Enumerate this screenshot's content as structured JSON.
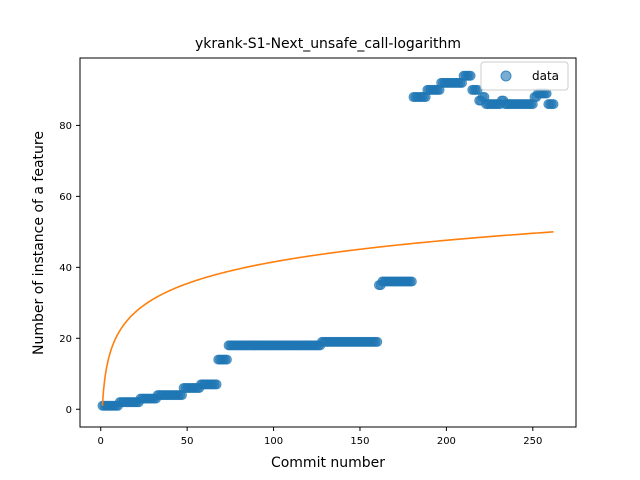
{
  "chart_data": {
    "type": "scatter",
    "title": "ykrank-S1-Next_unsafe_call-logarithm",
    "xlabel": "Commit number",
    "ylabel": "Number of instance of a feature",
    "xlim": [
      -12,
      275
    ],
    "ylim": [
      -5,
      99
    ],
    "xticks": [
      0,
      50,
      100,
      150,
      200,
      250
    ],
    "yticks": [
      0,
      20,
      40,
      60,
      80
    ],
    "grid": false,
    "legend": {
      "position": "top-right",
      "entries": [
        "data"
      ]
    },
    "colors": {
      "data": "#1f77b4",
      "fit": "#ff7f0e"
    },
    "series": [
      {
        "name": "data",
        "kind": "scatter",
        "segments": [
          {
            "x_start": 1,
            "x_end": 10,
            "y": 1
          },
          {
            "x_start": 11,
            "x_end": 22,
            "y": 2
          },
          {
            "x_start": 23,
            "x_end": 32,
            "y": 3
          },
          {
            "x_start": 33,
            "x_end": 47,
            "y": 4
          },
          {
            "x_start": 48,
            "x_end": 57,
            "y": 6
          },
          {
            "x_start": 58,
            "x_end": 67,
            "y": 7
          },
          {
            "x_start": 68,
            "x_end": 73,
            "y": 14
          },
          {
            "x_start": 74,
            "x_end": 127,
            "y": 18
          },
          {
            "x_start": 128,
            "x_end": 160,
            "y": 19
          },
          {
            "x_start": 161,
            "x_end": 162,
            "y": 35
          },
          {
            "x_start": 163,
            "x_end": 180,
            "y": 36
          },
          {
            "x_start": 181,
            "x_end": 188,
            "y": 88
          },
          {
            "x_start": 189,
            "x_end": 196,
            "y": 90
          },
          {
            "x_start": 197,
            "x_end": 209,
            "y": 92
          },
          {
            "x_start": 210,
            "x_end": 214,
            "y": 94
          },
          {
            "x_start": 215,
            "x_end": 218,
            "y": 90
          },
          {
            "x_start": 219,
            "x_end": 220,
            "y": 87
          },
          {
            "x_start": 221,
            "x_end": 222,
            "y": 88
          },
          {
            "x_start": 223,
            "x_end": 231,
            "y": 86
          },
          {
            "x_start": 232,
            "x_end": 233,
            "y": 87
          },
          {
            "x_start": 234,
            "x_end": 250,
            "y": 86
          },
          {
            "x_start": 251,
            "x_end": 252,
            "y": 88
          },
          {
            "x_start": 253,
            "x_end": 258,
            "y": 89
          },
          {
            "x_start": 259,
            "x_end": 262,
            "y": 86
          }
        ]
      },
      {
        "name": "",
        "kind": "line",
        "model": "a + b*ln(x)",
        "params": {
          "a": 1.0,
          "b": 8.8
        },
        "x_range": [
          1,
          262
        ]
      }
    ]
  }
}
